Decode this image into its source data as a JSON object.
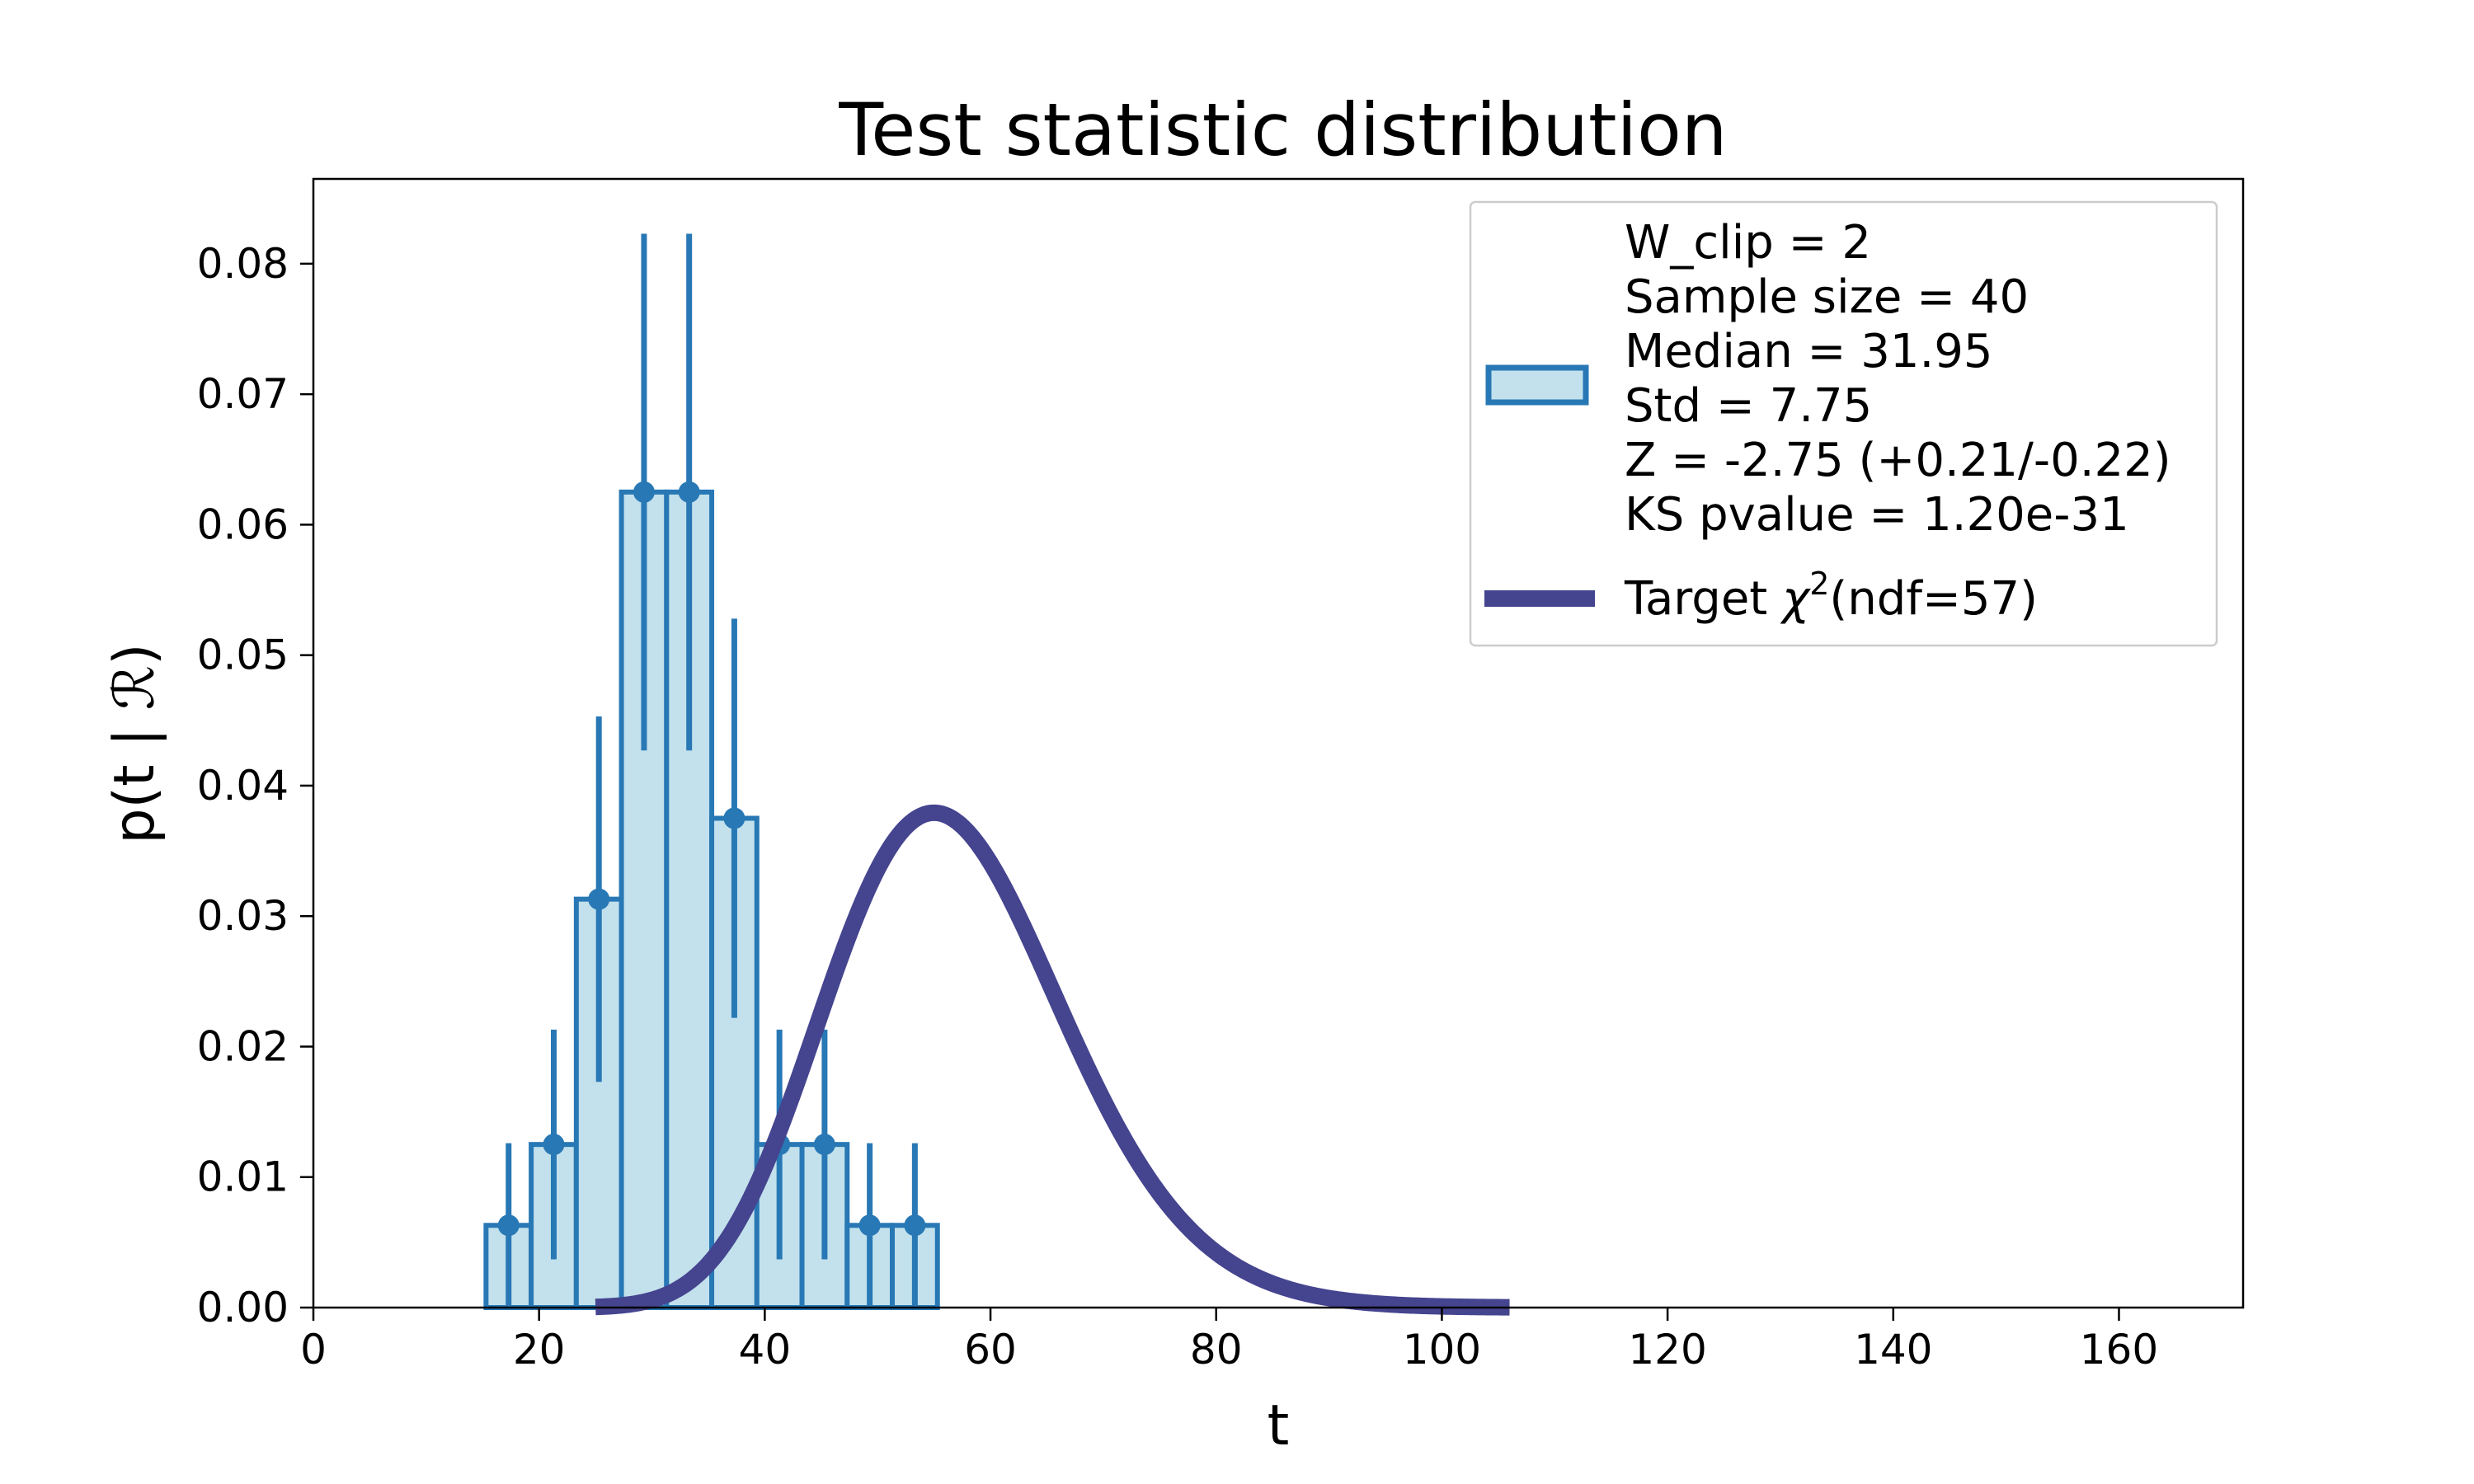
{
  "chart_data": {
    "type": "bar",
    "title": "Test statistic distribution",
    "xlabel": "t",
    "ylabel": "p(t | ℛ)",
    "xlim": [
      0,
      171
    ],
    "ylim": [
      0,
      0.0865
    ],
    "xticks": [
      0,
      20,
      40,
      60,
      80,
      100,
      120,
      140,
      160
    ],
    "xtick_labels": [
      "0",
      "20",
      "40",
      "60",
      "80",
      "100",
      "120",
      "140",
      "160"
    ],
    "yticks": [
      0,
      0.01,
      0.02,
      0.03,
      0.04,
      0.05,
      0.06,
      0.07,
      0.08
    ],
    "ytick_labels": [
      "0.00",
      "0.01",
      "0.02",
      "0.03",
      "0.04",
      "0.05",
      "0.06",
      "0.07",
      "0.08"
    ],
    "grid": false,
    "legend_position": "top-right",
    "histogram": {
      "bin_edges": [
        15.3,
        19.3,
        23.3,
        27.3,
        31.3,
        35.3,
        39.3,
        43.3,
        47.3,
        51.3,
        55.3
      ],
      "values": [
        0.0063,
        0.0125,
        0.0313,
        0.0625,
        0.0625,
        0.0375,
        0.0125,
        0.0125,
        0.0063,
        0.0063
      ],
      "errors": [
        0.0063,
        0.0088,
        0.014,
        0.0198,
        0.0198,
        0.0153,
        0.0088,
        0.0088,
        0.0063,
        0.0063
      ],
      "color": "#2878b5",
      "fill": "#c2e1ec"
    },
    "target_curve": {
      "ndf": 57,
      "x_range": [
        25,
        106
      ],
      "color": "#45448f"
    },
    "legend": {
      "histogram_lines": [
        "W_clip = 2",
        "Sample size = 40",
        "Median = 31.95",
        "Std = 7.75",
        "Z = -2.75 (+0.21/-0.22)",
        "KS pvalue = 1.20e-31"
      ],
      "curve_prefix": "Target ",
      "curve_symbol": "χ",
      "curve_superscript": "2",
      "curve_suffix": "(ndf=57)"
    }
  }
}
